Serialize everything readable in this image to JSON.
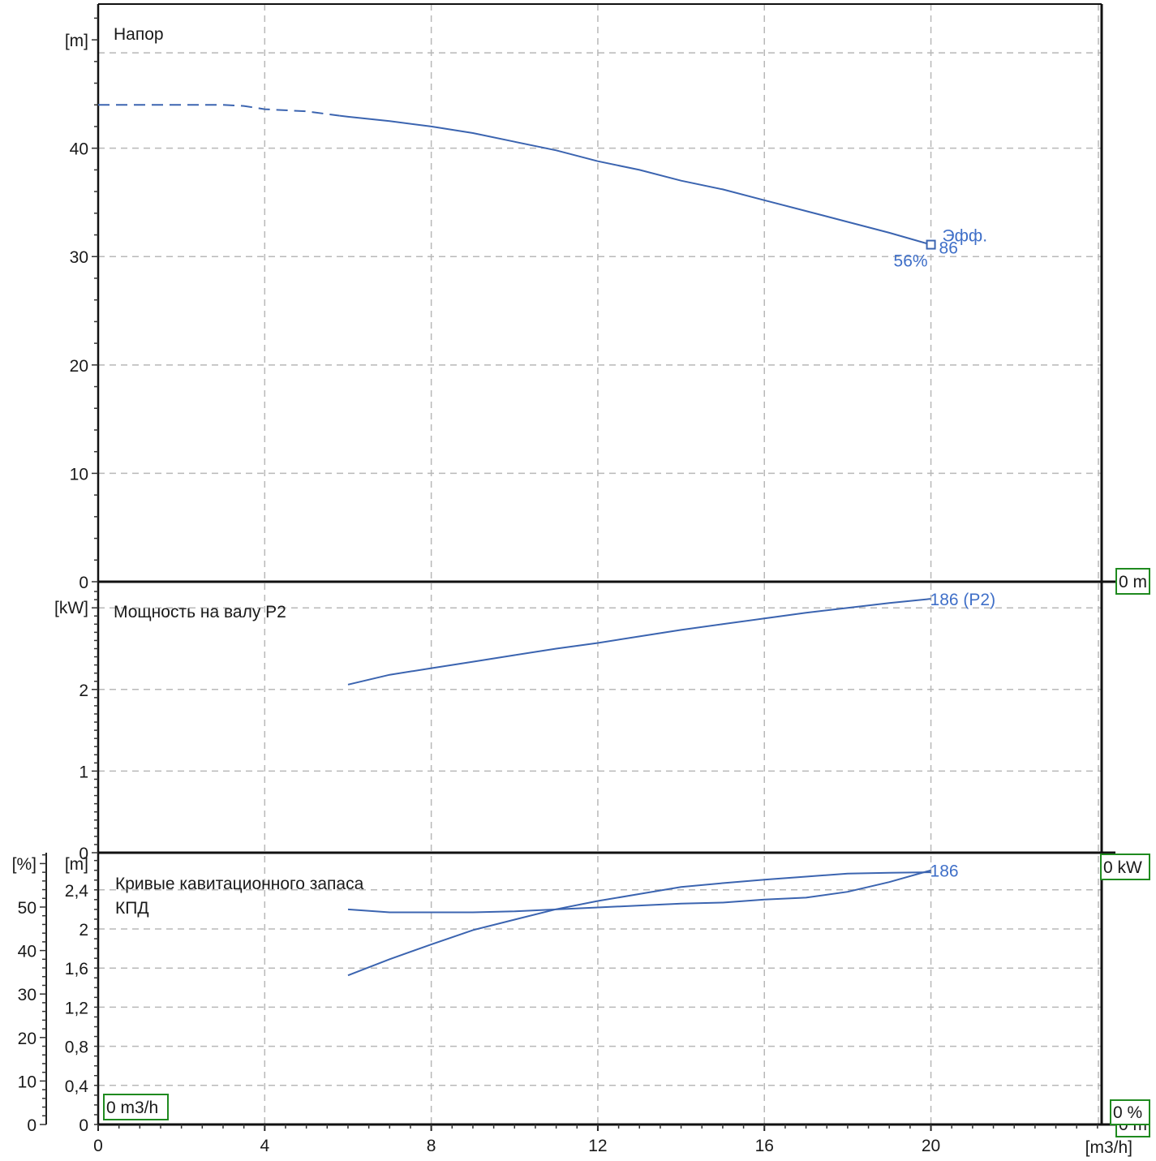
{
  "chart_data": [
    {
      "type": "line",
      "title": "Напор",
      "ylabel": "[m]",
      "xlabel": "[m3/h]",
      "x_ticks": [
        "0",
        "4",
        "8",
        "12",
        "16",
        "20"
      ],
      "y_ticks": [
        "0",
        "10",
        "20",
        "30",
        "40"
      ],
      "xlim": [
        0,
        24.1
      ],
      "ylim": [
        0,
        53.3
      ],
      "grid": true,
      "series": [
        {
          "name": "186",
          "style": "dashed",
          "x": [
            0,
            1,
            2,
            3,
            3.5,
            4,
            5,
            5.8
          ],
          "y": [
            44,
            44,
            44,
            44,
            43.9,
            43.6,
            43.4,
            43.0
          ]
        },
        {
          "name": "186",
          "style": "solid",
          "x": [
            5.8,
            6,
            7,
            8,
            9,
            10,
            11,
            12,
            13,
            14,
            15,
            16,
            17,
            18,
            19,
            20
          ],
          "y": [
            43.0,
            42.9,
            42.5,
            42.0,
            41.4,
            40.6,
            39.8,
            38.8,
            38.0,
            37.0,
            36.2,
            35.2,
            34.2,
            33.2,
            32.2,
            31.1
          ]
        }
      ],
      "annotations": [
        {
          "text": "Эфф.",
          "x": 20,
          "y": 31.1
        },
        {
          "text": "86",
          "x": 20,
          "y": 31.1
        },
        {
          "text": "56%",
          "x": 20,
          "y": 31.1
        }
      ],
      "readout": "0 m"
    },
    {
      "type": "line",
      "title": "Мощность на валу P2",
      "ylabel": "[kW]",
      "y_ticks": [
        "0",
        "1",
        "2"
      ],
      "ylim": [
        0,
        3.32
      ],
      "grid": true,
      "series": [
        {
          "name": "186 (P2)",
          "x": [
            6,
            7,
            8,
            9,
            10,
            11,
            12,
            13,
            14,
            15,
            16,
            17,
            18,
            19,
            20
          ],
          "y": [
            2.06,
            2.18,
            2.26,
            2.34,
            2.42,
            2.5,
            2.57,
            2.65,
            2.73,
            2.8,
            2.87,
            2.94,
            3.0,
            3.06,
            3.11
          ]
        }
      ],
      "readout": "0 kW"
    },
    {
      "type": "line",
      "title": "Кривые кавитационного запаса",
      "subtitle": "КПД",
      "ylabel_left": "[%]",
      "ylabel_right": "[m]",
      "y_ticks_percent": [
        "0",
        "10",
        "20",
        "30",
        "40",
        "50"
      ],
      "y_ticks_npsh": [
        "0",
        "0,4",
        "0,8",
        "1,2",
        "1,6",
        "2",
        "2,4"
      ],
      "ylim_percent": [
        0,
        62.5
      ],
      "ylim_npsh": [
        0,
        2.78
      ],
      "grid": true,
      "series": [
        {
          "name": "186",
          "axis": "npsh",
          "x": [
            6,
            7,
            8,
            9,
            10,
            11,
            12,
            13,
            14,
            15,
            16,
            17,
            18,
            19,
            20
          ],
          "y": [
            2.2,
            2.17,
            2.17,
            2.17,
            2.18,
            2.2,
            2.22,
            2.24,
            2.26,
            2.27,
            2.3,
            2.32,
            2.38,
            2.48,
            2.6
          ]
        },
        {
          "name": "186",
          "axis": "percent",
          "x": [
            6,
            7,
            8,
            9,
            10,
            11,
            12,
            13,
            14,
            15,
            16,
            17,
            18,
            19,
            20
          ],
          "y": [
            34.3,
            38.0,
            41.4,
            44.7,
            47.1,
            49.5,
            51.4,
            53.0,
            54.6,
            55.5,
            56.3,
            57.0,
            57.7,
            57.9,
            58.0
          ]
        }
      ],
      "readouts": {
        "flow": "0 m3/h",
        "percent": "0 %",
        "head": "0 m"
      }
    }
  ]
}
